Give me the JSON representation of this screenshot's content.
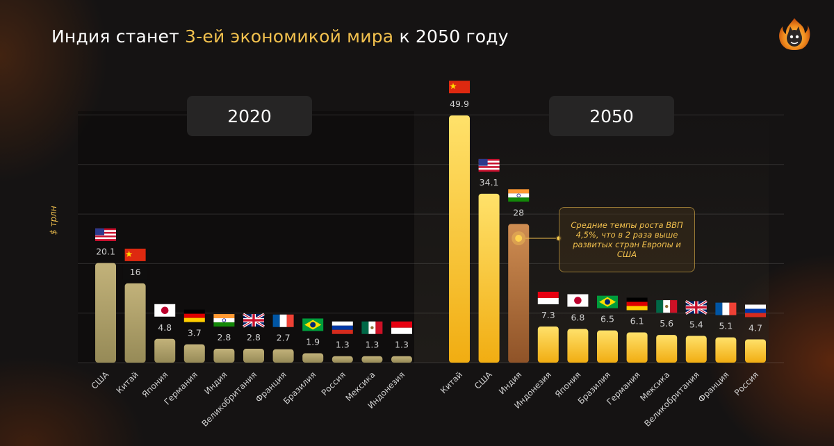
{
  "header": {
    "title_part1": "Индия станет ",
    "title_highlight": "3-ей экономикой мира",
    "title_part2": " к 2050 году"
  },
  "colors": {
    "accent": "#f2c14e",
    "bar_2020": "#a89a62",
    "bar_2050": "#f6c12e",
    "bar_india_2050": "#b87946",
    "panel": "#262525"
  },
  "callout": {
    "text": "Средние темпы роста ВВП 4,5%, что в 2 раза выше развитых стран Европы и США"
  },
  "chart_data": [
    {
      "type": "bar",
      "title": "2020",
      "ylabel": "$ трлн",
      "ylim": [
        0,
        52
      ],
      "grid": true,
      "categories": [
        "США",
        "Китай",
        "Япония",
        "Германия",
        "Индия",
        "Великобритания",
        "Франция",
        "Бразилия",
        "Россия",
        "Мексика",
        "Индонезия"
      ],
      "values": [
        20.1,
        16,
        4.8,
        3.7,
        2.8,
        2.8,
        2.7,
        1.9,
        1.3,
        1.3,
        1.3
      ],
      "labels": [
        "20.1",
        "16",
        "4.8",
        "3.7",
        "2.8",
        "2.8",
        "2.7",
        "1.9",
        "1.3",
        "1.3",
        "1.3"
      ],
      "flags": [
        "flag-usa-icon",
        "flag-china-icon",
        "flag-japan-icon",
        "flag-germany-icon",
        "flag-india-icon",
        "flag-uk-icon",
        "flag-france-icon",
        "flag-brazil-icon",
        "flag-russia-icon",
        "flag-mexico-icon",
        "flag-indonesia-icon"
      ]
    },
    {
      "type": "bar",
      "title": "2050",
      "ylabel": "$ трлн",
      "ylim": [
        0,
        52
      ],
      "grid": true,
      "categories": [
        "Китай",
        "США",
        "Индия",
        "Индонезия",
        "Япония",
        "Бразилия",
        "Германия",
        "Мексика",
        "Великобритания",
        "Франция",
        "Россия"
      ],
      "values": [
        49.9,
        34.1,
        28,
        7.3,
        6.8,
        6.5,
        6.1,
        5.6,
        5.4,
        5.1,
        4.7
      ],
      "labels": [
        "49.9",
        "34.1",
        "28",
        "7.3",
        "6.8",
        "6.5",
        "6.1",
        "5.6",
        "5.4",
        "5.1",
        "4.7"
      ],
      "flags": [
        "flag-china-icon",
        "flag-usa-icon",
        "flag-india-icon",
        "flag-indonesia-icon",
        "flag-japan-icon",
        "flag-brazil-icon",
        "flag-germany-icon",
        "flag-mexico-icon",
        "flag-uk-icon",
        "flag-france-icon",
        "flag-russia-icon"
      ],
      "highlight_category": "Индия"
    }
  ]
}
